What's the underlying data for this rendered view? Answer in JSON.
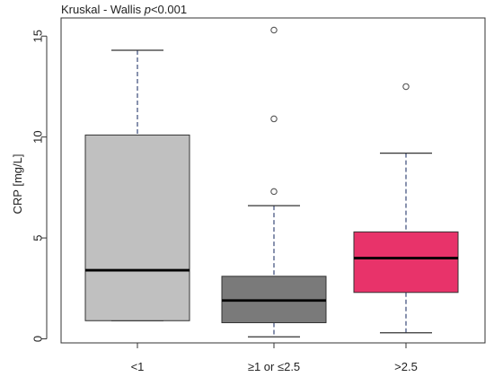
{
  "chart_data": {
    "type": "box",
    "title_prefix": "Kruskal - Wallis ",
    "title_p": "p",
    "title_suffix": "<0.001",
    "xlabel": "",
    "ylabel": "CRP [mg/L]",
    "ylim": [
      -0.2,
      15.9
    ],
    "yticks": [
      0,
      5,
      10,
      15
    ],
    "ytick_labels": [
      "0",
      "5",
      "10",
      "15"
    ],
    "grid": false,
    "categories": [
      "<1",
      "≥1 or ≤2.5",
      ">2.5"
    ],
    "boxes": [
      {
        "name": "<1",
        "min": 0.9,
        "q1": 0.9,
        "median": 3.4,
        "q3": 10.1,
        "max": 14.3,
        "outliers": [],
        "color": "#c0c0c0"
      },
      {
        "name": "≥1 or ≤2.5",
        "min": 0.1,
        "q1": 0.8,
        "median": 1.9,
        "q3": 3.1,
        "max": 6.6,
        "outliers": [
          7.3,
          10.9,
          15.3
        ],
        "color": "#7a7a7a"
      },
      {
        "name": ">2.5",
        "min": 0.3,
        "q1": 2.3,
        "median": 4.0,
        "q3": 5.3,
        "max": 9.2,
        "outliers": [
          12.5
        ],
        "color": "#e8336a"
      }
    ]
  }
}
